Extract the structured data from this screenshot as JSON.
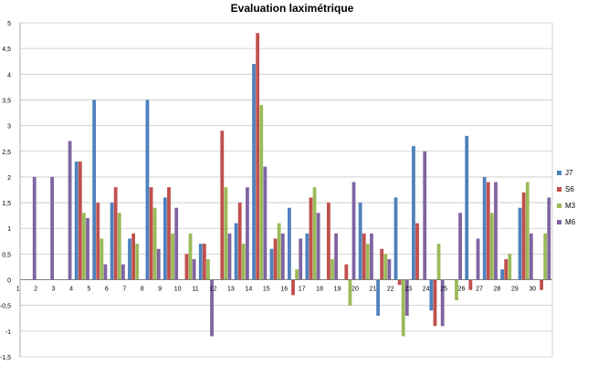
{
  "chart_data": {
    "type": "bar",
    "title": "Evaluation laximétrique",
    "xlabel": "",
    "ylabel": "",
    "ylim": [
      -1.5,
      5
    ],
    "yticks": [
      "-1,5",
      "-1",
      "-0,5",
      "0",
      "0,5",
      "1",
      "1,5",
      "2",
      "2,5",
      "3",
      "3,5",
      "4",
      "4,5",
      "5"
    ],
    "ytick_values": [
      -1.5,
      -1,
      -0.5,
      0,
      0.5,
      1,
      1.5,
      2,
      2.5,
      3,
      3.5,
      4,
      4.5,
      5
    ],
    "grid": true,
    "legend_position": "right",
    "categories": [
      "1",
      "2",
      "3",
      "4",
      "5",
      "6",
      "7",
      "8",
      "9",
      "10",
      "11",
      "12",
      "13",
      "14",
      "15",
      "16",
      "17",
      "18",
      "19",
      "20",
      "21",
      "22",
      "23",
      "24",
      "25",
      "26",
      "27",
      "28",
      "29",
      "30"
    ],
    "series": [
      {
        "name": "J7",
        "color": "#4f81bd",
        "values": [
          0,
          0,
          0,
          2.3,
          3.5,
          1.5,
          0.8,
          3.5,
          1.6,
          0,
          0.7,
          0,
          1.1,
          4.2,
          0.6,
          1.4,
          0.9,
          0,
          0,
          1.5,
          -0.7,
          1.6,
          2.6,
          -0.6,
          0,
          2.8,
          2.0,
          0.2,
          1.4,
          0
        ]
      },
      {
        "name": "S6",
        "color": "#c0504d",
        "values": [
          0,
          0,
          0,
          2.3,
          1.5,
          1.8,
          0.9,
          1.8,
          1.8,
          0.5,
          0.7,
          2.9,
          1.5,
          4.8,
          0.8,
          -0.3,
          1.6,
          1.5,
          0.3,
          0.9,
          0.6,
          -0.1,
          1.1,
          -0.9,
          0,
          -0.2,
          1.9,
          0.4,
          1.7,
          -0.2
        ]
      },
      {
        "name": "M3",
        "color": "#9bbb59",
        "values": [
          0,
          0,
          0,
          1.3,
          0.8,
          1.3,
          0.7,
          1.4,
          0.9,
          0.9,
          0.4,
          1.8,
          0.7,
          3.4,
          1.1,
          0.2,
          1.8,
          0.4,
          -0.5,
          0.7,
          0.5,
          -1.1,
          0,
          0.7,
          -0.4,
          0,
          1.3,
          0.5,
          1.9,
          0.9
        ]
      },
      {
        "name": "M6",
        "color": "#8064a2",
        "values": [
          2.0,
          2.0,
          2.7,
          1.2,
          0.3,
          0.3,
          0,
          0.6,
          1.4,
          0.4,
          -1.1,
          0.9,
          1.8,
          2.2,
          0.9,
          0.8,
          1.3,
          0.9,
          1.9,
          0.9,
          0.4,
          -0.7,
          2.5,
          -0.9,
          1.3,
          0.8,
          1.9,
          0,
          0.9,
          1.6
        ]
      }
    ]
  }
}
